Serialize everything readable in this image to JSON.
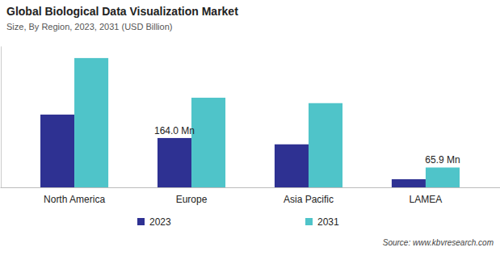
{
  "chart_data": {
    "type": "bar",
    "title": "Global Biological Data Visualization Market",
    "subtitle": "Size, By Region, 2023, 2031 (USD Billion)",
    "categories": [
      "North America",
      "Europe",
      "Asia Pacific",
      "LAMEA"
    ],
    "series": [
      {
        "name": "2023",
        "color": "#2e3192",
        "values": [
          242,
          164.0,
          143,
          27
        ],
        "value_labels": [
          null,
          "164.0 Mn",
          null,
          null
        ]
      },
      {
        "name": "2031",
        "color": "#4fc4c9",
        "values": [
          430,
          298,
          280,
          65.9
        ],
        "value_labels": [
          null,
          null,
          null,
          "65.9 Mn"
        ]
      }
    ],
    "ylim": [
      0,
      470
    ],
    "yticks": [],
    "grid": false,
    "tick_labels": "x",
    "legend": "bottom",
    "source": "Source: www.kbvresearch.com"
  }
}
